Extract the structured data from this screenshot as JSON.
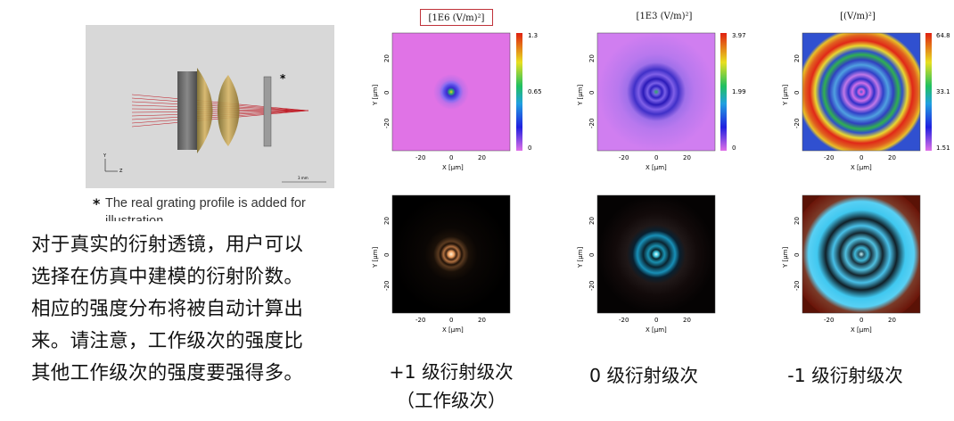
{
  "note": {
    "star": "*",
    "line1": "The real grating profile is added for",
    "line2": "illustration"
  },
  "description": [
    "对于真实的衍射透镜，用户可以",
    "选择在仿真中建模的衍射阶数。",
    "相应的强度分布将被自动计算出",
    "来。请注意，工作级次的强度比",
    "其他工作级次的强度要强得多。"
  ],
  "captions": {
    "plus1": "+1 级衍射级次",
    "plus1_sub": "（工作级次）",
    "zero": "0 级衍射级次",
    "minus1": "-1 级衍射级次"
  },
  "plot_titles": {
    "plus1": "[1E6 (V/m)²]",
    "zero": "[1E3 (V/m)²]",
    "minus1": "[(V/m)²]"
  },
  "colorbars": {
    "plus1": [
      "1.3",
      "0.65",
      "0"
    ],
    "zero": [
      "3.97",
      "1.99",
      "0"
    ],
    "minus1": [
      "64.8",
      "33.1",
      "1.51"
    ]
  },
  "axes": {
    "xlabel": "X [µm]",
    "ylabel": "Y [µm]",
    "ticks": [
      "-20",
      "0",
      "20"
    ]
  },
  "schematic_labels": {
    "star": "*",
    "y": "Y",
    "z": "Z",
    "scale": "3 mm"
  }
}
